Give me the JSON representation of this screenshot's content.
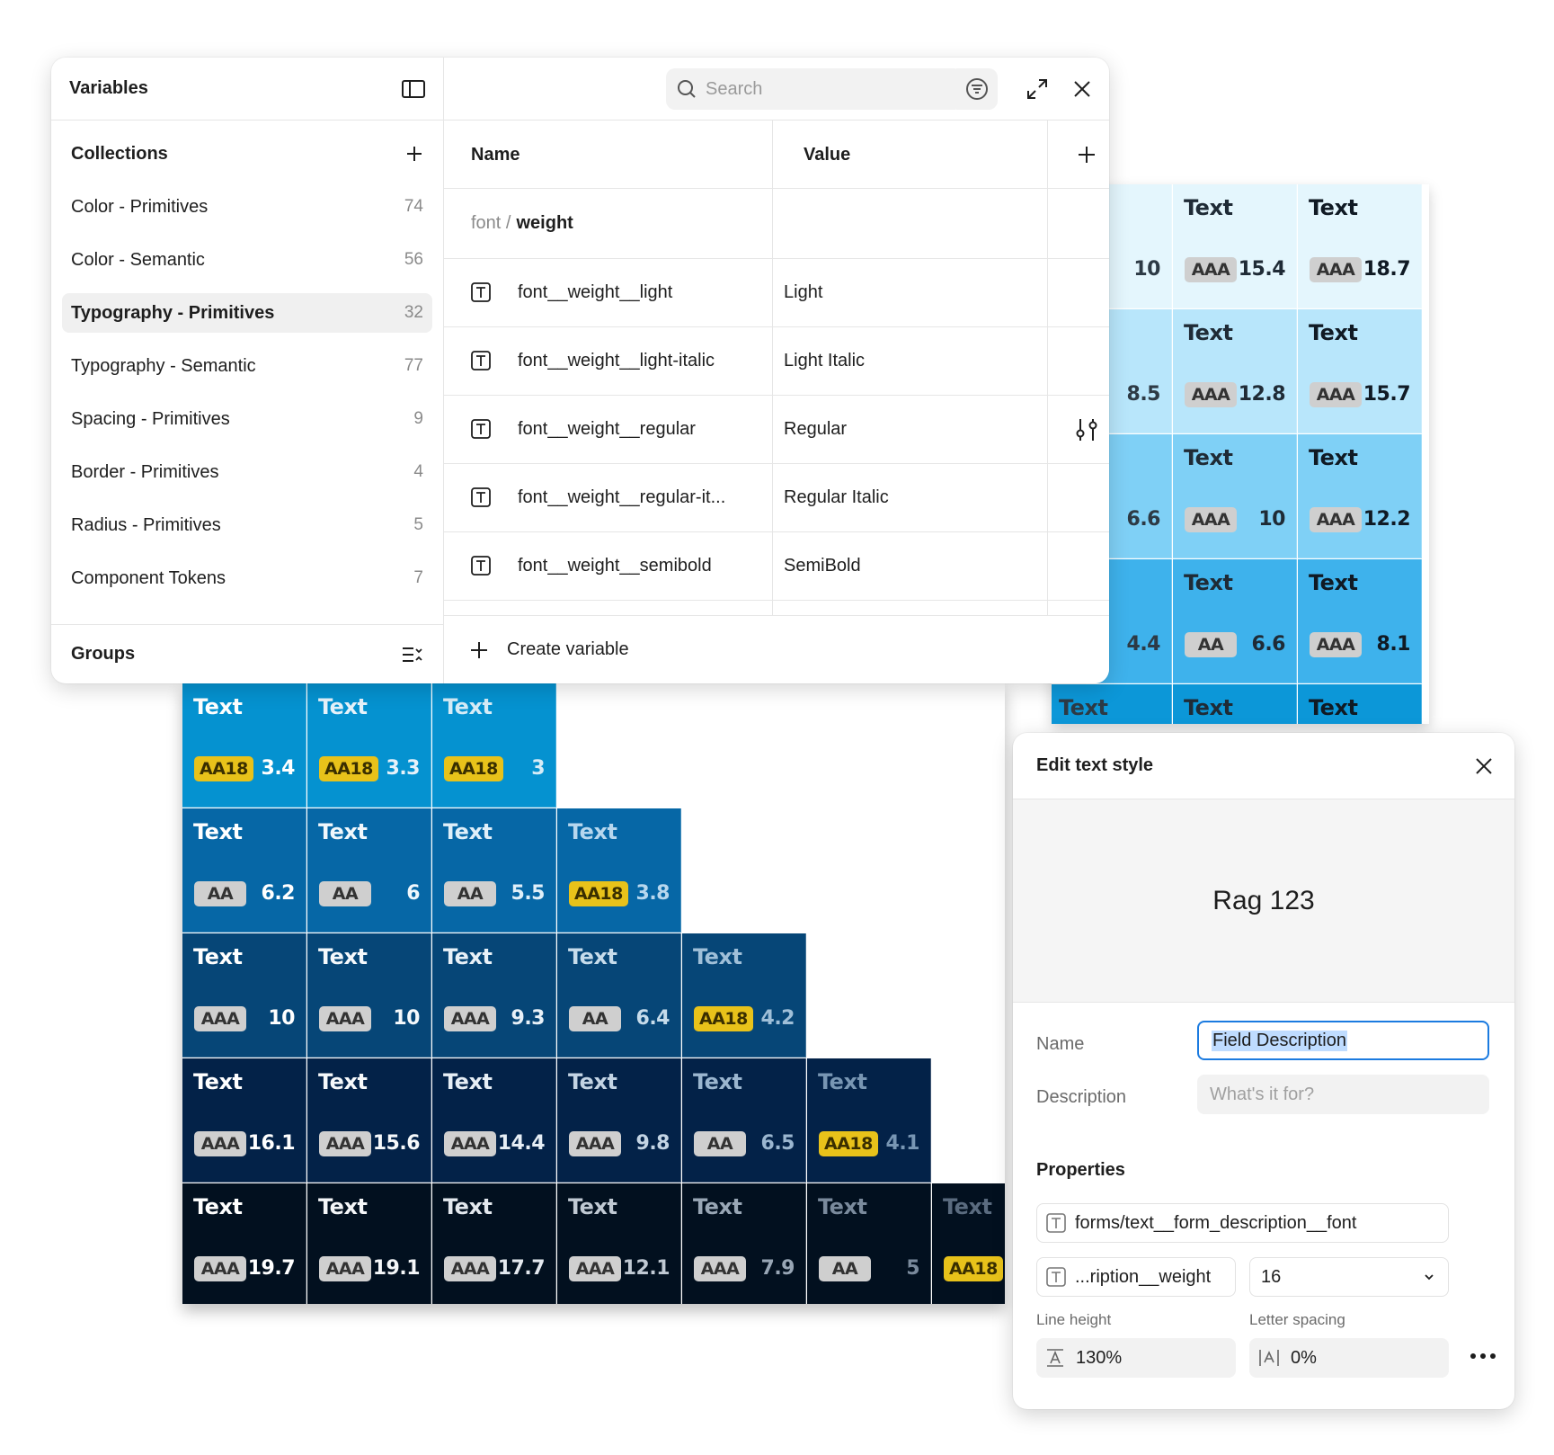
{
  "variables_panel": {
    "title": "Variables",
    "collections_title": "Collections",
    "collections": [
      {
        "label": "Color - Primitives",
        "count": "74"
      },
      {
        "label": "Color - Semantic",
        "count": "56"
      },
      {
        "label": "Typography - Primitives",
        "count": "32",
        "active": true
      },
      {
        "label": "Typography - Semantic",
        "count": "77"
      },
      {
        "label": "Spacing - Primitives",
        "count": "9"
      },
      {
        "label": "Border - Primitives",
        "count": "4"
      },
      {
        "label": "Radius - Primitives",
        "count": "5"
      },
      {
        "label": "Component Tokens",
        "count": "7"
      }
    ],
    "groups_title": "Groups",
    "search_placeholder": "Search",
    "columns": {
      "name": "Name",
      "value": "Value"
    },
    "group_path": {
      "prefix": "font /",
      "current": "weight"
    },
    "rows": [
      {
        "name": "font__weight__light",
        "value": "Light"
      },
      {
        "name": "font__weight__light-italic",
        "value": "Light Italic"
      },
      {
        "name": "font__weight__regular",
        "value": "Regular"
      },
      {
        "name": "font__weight__regular-it...",
        "value": "Regular Italic"
      },
      {
        "name": "font__weight__semibold",
        "value": "SemiBold"
      }
    ],
    "create_label": "Create variable"
  },
  "edit_text_style": {
    "title": "Edit text style",
    "preview_text": "Rag 123",
    "name_label": "Name",
    "name_value": "Field Description",
    "description_label": "Description",
    "description_placeholder": "What's it for?",
    "properties_title": "Properties",
    "font_family": "forms/text__form_description__font",
    "font_weight": "...ription__weight",
    "font_size": "16",
    "line_height_label": "Line height",
    "line_height": "130%",
    "letter_spacing_label": "Letter spacing",
    "letter_spacing": "0%"
  },
  "contrast_grid": {
    "cell_text": "Text",
    "colors": {
      "row1": "#0592d0",
      "row2": "#0667a6",
      "row3": "#064677",
      "row4": "#032248",
      "row5": "#02101f",
      "badge_gray": "#cfcfcf",
      "badge_yellow": "#e8c21a"
    },
    "bottom_rows": [
      {
        "color": "#0592d0",
        "cells": [
          {
            "badge": "AA18",
            "badge_style": "yellow",
            "value": "3.4",
            "text_color": "#ffffff"
          },
          {
            "badge": "AA18",
            "badge_style": "yellow",
            "value": "3.3",
            "text_color": "#e6f2fa"
          },
          {
            "badge": "AA18",
            "badge_style": "yellow",
            "value": "3",
            "text_color": "#d6ecf7"
          }
        ]
      },
      {
        "color": "#0667a6",
        "cells": [
          {
            "badge": "AA",
            "badge_style": "gray",
            "value": "6.2",
            "text_color": "#ffffff"
          },
          {
            "badge": "AA",
            "badge_style": "gray",
            "value": "6",
            "text_color": "#f0f7fc"
          },
          {
            "badge": "AA",
            "badge_style": "gray",
            "value": "5.5",
            "text_color": "#dfeff9"
          },
          {
            "badge": "AA18",
            "badge_style": "yellow",
            "value": "3.8",
            "text_color": "#b7d7ee"
          }
        ]
      },
      {
        "color": "#064677",
        "cells": [
          {
            "badge": "AAA",
            "badge_style": "gray",
            "value": "10",
            "text_color": "#ffffff"
          },
          {
            "badge": "AAA",
            "badge_style": "gray",
            "value": "10",
            "text_color": "#f5f9fc"
          },
          {
            "badge": "AAA",
            "badge_style": "gray",
            "value": "9.3",
            "text_color": "#e8f1f8"
          },
          {
            "badge": "AA",
            "badge_style": "gray",
            "value": "6.4",
            "text_color": "#c6dceb"
          },
          {
            "badge": "AA18",
            "badge_style": "yellow",
            "value": "4.2",
            "text_color": "#9fbfd8"
          }
        ]
      },
      {
        "color": "#032248",
        "cells": [
          {
            "badge": "AAA",
            "badge_style": "gray",
            "value": "16.1",
            "text_color": "#ffffff"
          },
          {
            "badge": "AAA",
            "badge_style": "gray",
            "value": "15.6",
            "text_color": "#f6f9fb"
          },
          {
            "badge": "AAA",
            "badge_style": "gray",
            "value": "14.4",
            "text_color": "#e6eef5"
          },
          {
            "badge": "AAA",
            "badge_style": "gray",
            "value": "9.8",
            "text_color": "#c3d4e4"
          },
          {
            "badge": "AA",
            "badge_style": "gray",
            "value": "6.5",
            "text_color": "#9bb6cf"
          },
          {
            "badge": "AA18",
            "badge_style": "yellow",
            "value": "4.1",
            "text_color": "#7896b3"
          }
        ]
      },
      {
        "color": "#02101f",
        "cells": [
          {
            "badge": "AAA",
            "badge_style": "gray",
            "value": "19.7",
            "text_color": "#ffffff"
          },
          {
            "badge": "AAA",
            "badge_style": "gray",
            "value": "19.1",
            "text_color": "#f4f6f8"
          },
          {
            "badge": "AAA",
            "badge_style": "gray",
            "value": "17.7",
            "text_color": "#e3e8ee"
          },
          {
            "badge": "AAA",
            "badge_style": "gray",
            "value": "12.1",
            "text_color": "#c0c9d3"
          },
          {
            "badge": "AAA",
            "badge_style": "gray",
            "value": "7.9",
            "text_color": "#98a6b5"
          },
          {
            "badge": "AA",
            "badge_style": "gray",
            "value": "5",
            "text_color": "#7a8a9c"
          },
          {
            "badge": "AA18",
            "badge_style": "yellow",
            "value": "",
            "text_color": "#5a6b7f"
          }
        ]
      }
    ],
    "right_rows": [
      {
        "color": "#e4f6fd",
        "cells": [
          {
            "badge": "",
            "badge_style": "gray",
            "value": "10",
            "text_color": "#2d3a45"
          },
          {
            "badge": "AAA",
            "badge_style": "gray",
            "value": "15.4",
            "text_color": "#1f2b36"
          },
          {
            "badge": "AAA",
            "badge_style": "gray",
            "value": "18.7",
            "text_color": "#101a24"
          }
        ]
      },
      {
        "color": "#b8e6fb",
        "cells": [
          {
            "badge": "",
            "badge_style": "gray",
            "value": "8.5",
            "text_color": "#2d3a45"
          },
          {
            "badge": "AAA",
            "badge_style": "gray",
            "value": "12.8",
            "text_color": "#1f2b36"
          },
          {
            "badge": "AAA",
            "badge_style": "gray",
            "value": "15.7",
            "text_color": "#101a24"
          }
        ]
      },
      {
        "color": "#7fd0f6",
        "cells": [
          {
            "badge": "",
            "badge_style": "gray",
            "value": "6.6",
            "text_color": "#2d3a45"
          },
          {
            "badge": "AAA",
            "badge_style": "gray",
            "value": "10",
            "text_color": "#1f2b36"
          },
          {
            "badge": "AAA",
            "badge_style": "gray",
            "value": "12.2",
            "text_color": "#101a24"
          }
        ]
      },
      {
        "color": "#3eb2ec",
        "cells": [
          {
            "badge": "",
            "badge_style": "yellow",
            "value": "4.4",
            "text_color": "#2d3a45"
          },
          {
            "badge": "AA",
            "badge_style": "gray",
            "value": "6.6",
            "text_color": "#1f2b36"
          },
          {
            "badge": "AAA",
            "badge_style": "gray",
            "value": "8.1",
            "text_color": "#101a24"
          }
        ]
      },
      {
        "color": "#0c97d8",
        "cells": [
          {
            "badge": "",
            "badge_style": "none",
            "value": "",
            "text_color": "#2d3a45"
          },
          {
            "badge": "",
            "badge_style": "none",
            "value": "",
            "text_color": "#1f2b36"
          },
          {
            "badge": "",
            "badge_style": "none",
            "value": "",
            "text_color": "#101a24"
          }
        ]
      }
    ]
  }
}
